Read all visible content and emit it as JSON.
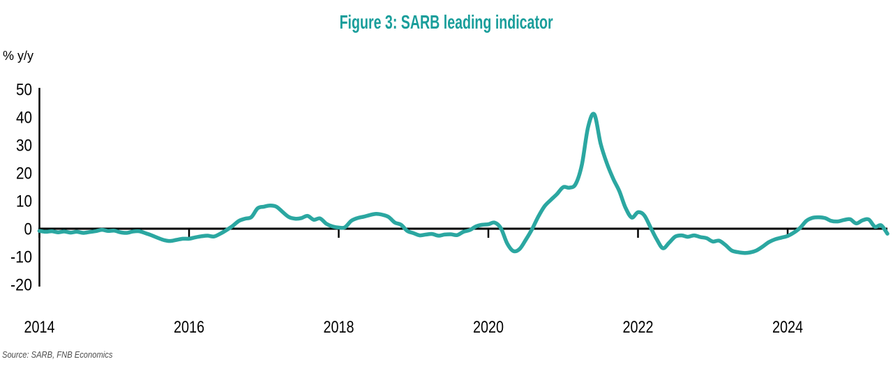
{
  "title": "Figure 3: SARB leading indicator",
  "y_axis_label": "% y/y",
  "source": "Source: SARB, FNB Economics",
  "colors": {
    "title_teal": "#1A9E9B",
    "line_teal": "#2BA7A1",
    "axis": "#000000",
    "tick_text": "#000000",
    "source_text": "#4D4D4D",
    "background": "#FFFFFF"
  },
  "chart_data": {
    "type": "line",
    "title": "Figure 3: SARB leading indicator",
    "xlabel": "",
    "ylabel": "% y/y",
    "xlim": [
      2014,
      2025.45
    ],
    "ylim": [
      -20,
      50
    ],
    "x_ticks": [
      2014,
      2016,
      2018,
      2020,
      2022,
      2024
    ],
    "y_ticks": [
      50,
      40,
      30,
      20,
      10,
      0,
      -10,
      -20
    ],
    "grid": false,
    "legend_position": "none",
    "series": [
      {
        "name": "SARB leading indicator",
        "units": "% y/y",
        "x_start": 2014.0,
        "x_frequency": "monthly",
        "x_end": 2025.333,
        "values": [
          -0.8,
          -1.1,
          -0.9,
          -1.3,
          -1.0,
          -1.4,
          -1.1,
          -1.5,
          -1.2,
          -0.9,
          -0.4,
          -0.8,
          -0.7,
          -1.3,
          -1.5,
          -1.0,
          -0.9,
          -1.6,
          -2.4,
          -3.3,
          -4.1,
          -4.4,
          -4.0,
          -3.6,
          -3.6,
          -3.1,
          -2.7,
          -2.5,
          -2.8,
          -1.8,
          -0.5,
          1.0,
          2.8,
          3.6,
          4.2,
          7.3,
          7.9,
          8.3,
          7.9,
          6.0,
          4.2,
          3.6,
          3.8,
          4.6,
          3.2,
          3.7,
          1.8,
          0.8,
          0.4,
          0.5,
          2.8,
          3.8,
          4.3,
          4.9,
          5.3,
          5.0,
          4.2,
          2.2,
          1.4,
          -0.8,
          -1.6,
          -2.4,
          -2.1,
          -1.9,
          -2.5,
          -2.1,
          -2.0,
          -2.3,
          -1.1,
          -0.5,
          0.8,
          1.4,
          1.6,
          2.2,
          0.2,
          -5.2,
          -8.0,
          -7.3,
          -4.0,
          -0.2,
          4.3,
          8.0,
          10.3,
          12.4,
          14.9,
          14.7,
          16.0,
          23.0,
          36.5,
          41.0,
          30.5,
          23.5,
          18.0,
          13.5,
          7.5,
          4.0,
          5.9,
          4.8,
          0.5,
          -3.8,
          -7.0,
          -5.0,
          -2.8,
          -2.4,
          -2.9,
          -2.4,
          -3.0,
          -3.4,
          -4.6,
          -4.3,
          -5.8,
          -7.8,
          -8.4,
          -8.7,
          -8.5,
          -7.8,
          -6.4,
          -4.8,
          -3.8,
          -3.2,
          -2.6,
          -1.4,
          0.3,
          2.8,
          3.9,
          4.1,
          3.8,
          2.8,
          2.6,
          3.1,
          3.4,
          1.9,
          3.0,
          3.3,
          0.7,
          1.2,
          -1.8
        ]
      }
    ]
  }
}
